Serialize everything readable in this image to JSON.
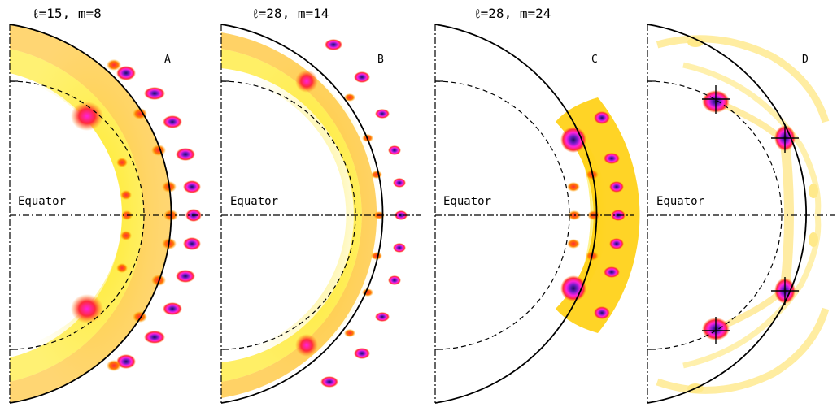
{
  "panels": [
    {
      "label": "A",
      "title": "ℓ=15,  m=8",
      "equator_label": "Equator"
    },
    {
      "label": "B",
      "title": "ℓ=28,  m=14",
      "equator_label": "Equator"
    },
    {
      "label": "C",
      "title": "ℓ=28,  m=24",
      "equator_label": "Equator"
    },
    {
      "label": "D",
      "title": "",
      "equator_label": "Equator"
    }
  ],
  "colors": {
    "low": "#fffde0",
    "yellow": "#ffe500",
    "orange": "#ff7a00",
    "red": "#ff2a3a",
    "magenta": "#ff22dd",
    "purple": "#7a1ccc",
    "dark": "#1a1060"
  }
}
